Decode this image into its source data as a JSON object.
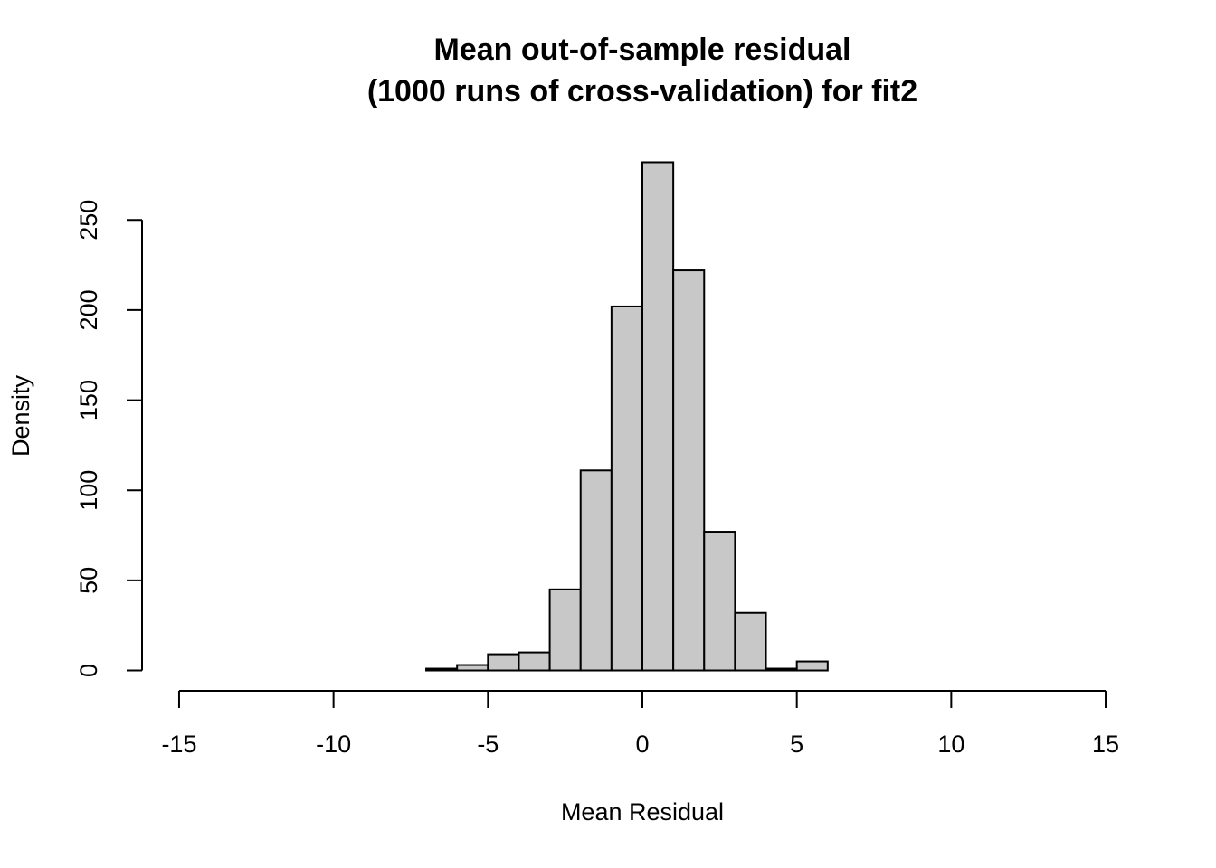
{
  "chart_data": {
    "type": "histogram",
    "title": [
      "Mean out-of-sample residual",
      "(1000 runs of cross-validation) for fit2"
    ],
    "x_label": "Mean Residual",
    "y_label": "Density",
    "bins": [
      -7,
      -6,
      -5,
      -4,
      -3,
      -2,
      -1,
      0,
      1,
      2,
      3,
      4,
      5,
      6
    ],
    "values": [
      1,
      3,
      9,
      10,
      45,
      111,
      202,
      282,
      222,
      77,
      32,
      1,
      5
    ],
    "color": "#c8c8c8",
    "xlim": [
      -16.2,
      16.2
    ],
    "xticks": [
      -15,
      -10,
      -5,
      0,
      5,
      10,
      15
    ],
    "ylim": [
      -11.28,
      293.28
    ],
    "yticks": [
      0,
      50,
      100,
      150,
      200,
      250
    ]
  }
}
